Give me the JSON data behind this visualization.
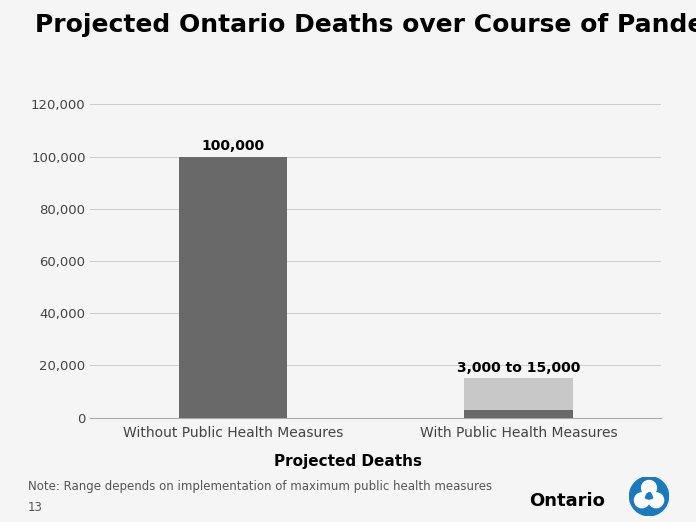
{
  "title": "Projected Ontario Deaths over Course of Pandemic",
  "categories": [
    "Without Public Health Measures",
    "With Public Health Measures"
  ],
  "bar1_value": 100000,
  "bar2_low": 3000,
  "bar2_high": 15000,
  "bar1_color": "#696969",
  "bar2_low_color": "#696969",
  "bar2_high_color": "#c8c8c8",
  "bar1_label": "100,000",
  "bar2_label": "3,000 to 15,000",
  "xlabel": "Projected Deaths",
  "ylim": [
    0,
    120000
  ],
  "yticks": [
    0,
    20000,
    40000,
    60000,
    80000,
    100000,
    120000
  ],
  "ytick_labels": [
    "0",
    "20,000",
    "40,000",
    "60,000",
    "80,000",
    "100,000",
    "120,000"
  ],
  "note": "Note: Range depends on implementation of maximum public health measures",
  "slide_number": "13",
  "background_color": "#f5f5f5",
  "grid_color": "#cccccc",
  "title_fontsize": 18,
  "label_fontsize": 10,
  "tick_fontsize": 9.5,
  "note_fontsize": 8.5,
  "ontario_text": "Ontario",
  "ontario_circle_color": "#1a7abf"
}
